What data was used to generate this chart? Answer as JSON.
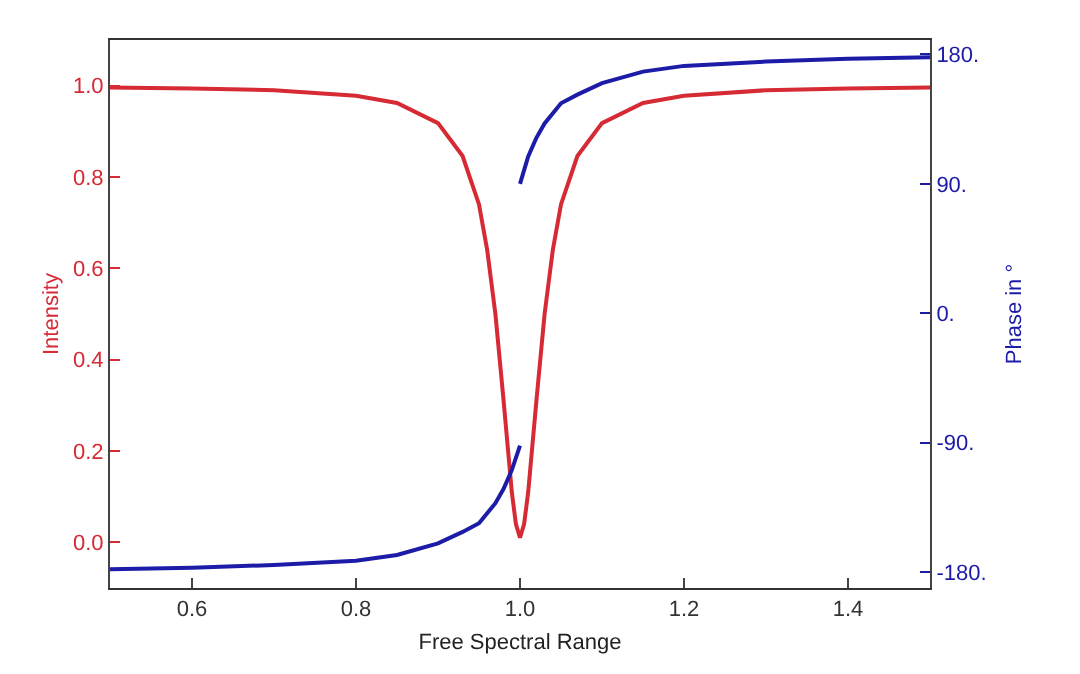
{
  "chart_data": {
    "type": "line",
    "xlabel": "Free Spectral Range",
    "ylabel": "Intensity",
    "y2label": "Phase in °",
    "xlim": [
      0.5,
      1.5
    ],
    "xticks": [
      0.6,
      0.8,
      {
        "value": 1,
        "label": "1.0"
      },
      1.2,
      1.4
    ],
    "ylim": [
      -0.1,
      1.1
    ],
    "yticks": [
      {
        "value": 0,
        "label": "0.0"
      },
      {
        "value": 0.2,
        "label": "0.2"
      },
      {
        "value": 0.4,
        "label": "0.4"
      },
      {
        "value": 0.6,
        "label": "0.6"
      },
      {
        "value": 0.8,
        "label": "0.8"
      },
      {
        "value": 1,
        "label": "1.0"
      }
    ],
    "y2lim": [
      -191,
      190
    ],
    "y2ticks": [
      {
        "value": -180,
        "label": "-180."
      },
      {
        "value": -90,
        "label": "-90."
      },
      {
        "value": 0,
        "label": "0."
      },
      {
        "value": 90,
        "label": "90."
      },
      {
        "value": 180,
        "label": "180."
      }
    ],
    "marker": "none",
    "line_style": "solid",
    "series": [
      {
        "color": "#d62a35",
        "x": [
          0.5,
          0.6,
          0.7,
          0.8,
          0.85,
          0.9,
          0.93,
          0.95,
          0.96,
          0.97,
          0.98,
          0.99,
          0.995,
          1.0,
          1.005,
          1.01,
          1.02,
          1.03,
          1.04,
          1.05,
          1.07,
          1.1,
          1.15,
          1.2,
          1.3,
          1.4,
          1.5
        ],
        "values": [
          0.996,
          0.994,
          0.99,
          0.978,
          0.962,
          0.918,
          0.846,
          0.74,
          0.64,
          0.5,
          0.31,
          0.11,
          0.04,
          0.01,
          0.04,
          0.11,
          0.31,
          0.5,
          0.64,
          0.74,
          0.846,
          0.918,
          0.962,
          0.978,
          0.99,
          0.994,
          0.996
        ]
      },
      {
        "color": "#1c1ca8",
        "axis": "y2",
        "x": [
          0.5,
          0.6,
          0.7,
          0.8,
          0.85,
          0.9,
          0.93,
          0.95,
          0.97,
          0.98,
          0.99,
          1.0
        ],
        "values": [
          -178,
          -177,
          -175,
          -172,
          -168,
          -160,
          -152,
          -146,
          -132,
          -122,
          -109,
          -92
        ]
      },
      {
        "color": "#1c1ca8",
        "axis": "y2",
        "x": [
          1.0,
          1.01,
          1.02,
          1.03,
          1.05,
          1.07,
          1.1,
          1.15,
          1.2,
          1.3,
          1.4,
          1.5
        ],
        "values": [
          90,
          109,
          122,
          132,
          146,
          152,
          160,
          168,
          172,
          175,
          177,
          178
        ]
      }
    ]
  }
}
